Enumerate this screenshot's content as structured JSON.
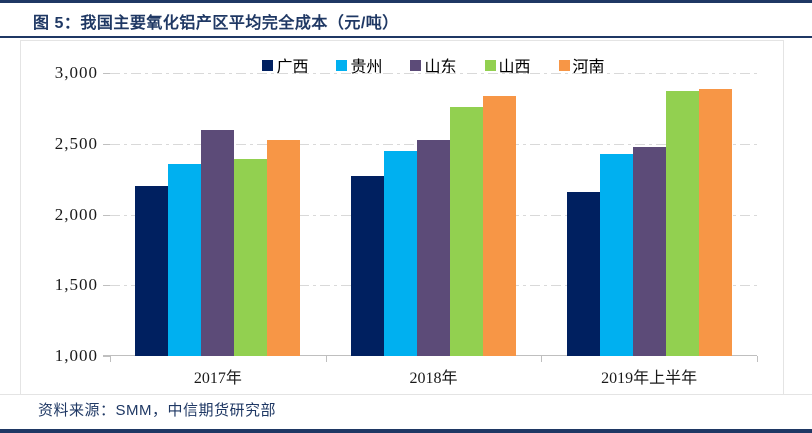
{
  "header": {
    "title": "图 5：我国主要氧化铝产区平均完全成本（元/吨）"
  },
  "footer": {
    "source": "资料来源：SMM，中信期货研究部"
  },
  "colors": {
    "accent_navy": "#1F3864",
    "grid": "#D9D9D9",
    "axis": "#BFBFBF",
    "text": "#1a1a1a"
  },
  "chart_data": {
    "type": "bar",
    "title": "我国主要氧化铝产区平均完全成本（元/吨）",
    "categories": [
      "2017年",
      "2018年",
      "2019年上半年"
    ],
    "series": [
      {
        "name": "广西",
        "color": "#002060",
        "values": [
          2200,
          2270,
          2160
        ]
      },
      {
        "name": "贵州",
        "color": "#00B0F0",
        "values": [
          2360,
          2450,
          2430
        ]
      },
      {
        "name": "山东",
        "color": "#5C4B78",
        "values": [
          2600,
          2530,
          2480
        ]
      },
      {
        "name": "山西",
        "color": "#92D050",
        "values": [
          2390,
          2760,
          2870
        ]
      },
      {
        "name": "河南",
        "color": "#F79646",
        "values": [
          2530,
          2840,
          2890
        ]
      }
    ],
    "ylim": [
      1000,
      3000
    ],
    "ytick_step": 500,
    "ytick_labels": [
      "1,000",
      "1,500",
      "2,000",
      "2,500",
      "3,000"
    ],
    "grid": "horizontal dash-dot",
    "legend_position": "top-center",
    "xlabel": "",
    "ylabel": ""
  }
}
